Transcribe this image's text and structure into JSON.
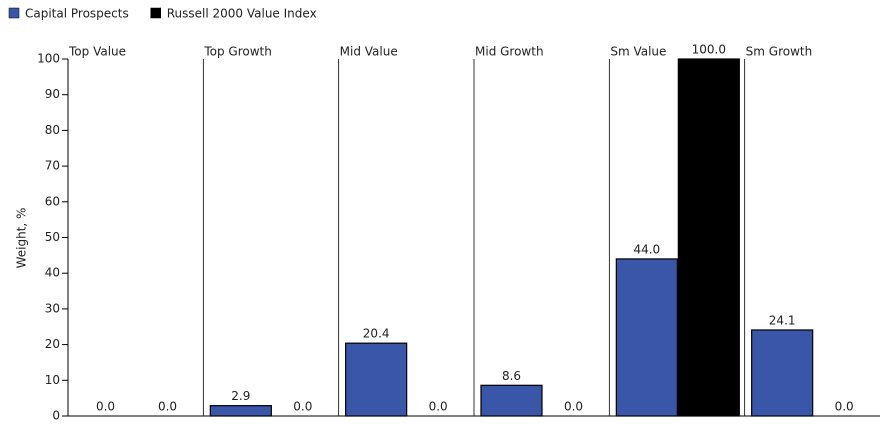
{
  "chart_data": {
    "type": "bar",
    "categories": [
      "Top Value",
      "Top Growth",
      "Mid Value",
      "Mid Growth",
      "Sm Value",
      "Sm Growth"
    ],
    "series": [
      {
        "name": "Capital Prospects",
        "color": "#3a56a8",
        "values": [
          0,
          2.9,
          20.4,
          8.6,
          44.0,
          24.1
        ],
        "value_labels": [
          "0.0",
          "2.9",
          "20.4",
          "8.6",
          "44.0",
          "24.1"
        ]
      },
      {
        "name": "Russell 2000 Value Index",
        "color": "#000000",
        "values": [
          0,
          0,
          0,
          0,
          100,
          0
        ],
        "value_labels": [
          "0.0",
          "0.0",
          "0.0",
          "0.0",
          "100.0",
          "0.0"
        ]
      }
    ],
    "y_label": "Weight, %",
    "ylim": [
      0,
      100
    ],
    "yticks": [
      0,
      10,
      20,
      30,
      40,
      50,
      60,
      70,
      80,
      90,
      100
    ],
    "legend": "top-left"
  }
}
